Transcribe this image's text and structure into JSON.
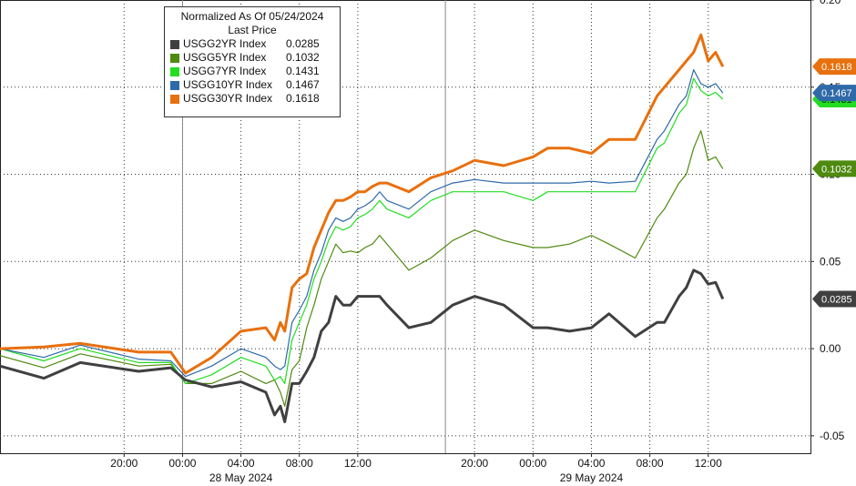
{
  "chart_data": {
    "type": "line",
    "title": "Normalized As Of 05/24/2024",
    "legend_header": "Last Price",
    "legend_position": "top-left",
    "grid": true,
    "ylim": [
      -0.06,
      0.2
    ],
    "y_ticks": [
      "0.20",
      "0.15",
      "0.10",
      "0.05",
      "0.00",
      "-0.05"
    ],
    "x_ticks": [
      "20:00",
      "00:00",
      "04:00",
      "08:00",
      "12:00",
      "20:00",
      "00:00",
      "04:00",
      "08:00",
      "12:00"
    ],
    "x_ticks_t": [
      20,
      24,
      28,
      32,
      36,
      44,
      48,
      52,
      56,
      60
    ],
    "date_labels": [
      {
        "label": "28 May 2024",
        "t": 28
      },
      {
        "label": "29 May 2024",
        "t": 52
      }
    ],
    "xlim": [
      11.5,
      67
    ],
    "x_unit": "hours since 00:00 27 May 2024",
    "series": [
      {
        "name": "USGG2YR Index",
        "last": "0.0285",
        "color": "#404040",
        "width": 3,
        "x": [
          11.5,
          14.5,
          17,
          21,
          23.2,
          24.2,
          26,
          28,
          29.7,
          30.3,
          30.7,
          31,
          31.5,
          32,
          32.5,
          33,
          33.5,
          34,
          34.5,
          35,
          35.5,
          36,
          36.5,
          37,
          37.5,
          38,
          39.5,
          41,
          42.5,
          44,
          46,
          48,
          49,
          50.5,
          52,
          53.2,
          55,
          56.5,
          57,
          58,
          58.5,
          59,
          59.5,
          60,
          60.5,
          61
        ],
        "y": [
          -0.01,
          -0.017,
          -0.008,
          -0.013,
          -0.011,
          -0.018,
          -0.022,
          -0.019,
          -0.025,
          -0.038,
          -0.033,
          -0.042,
          -0.02,
          -0.02,
          -0.013,
          -0.005,
          0.01,
          0.015,
          0.03,
          0.025,
          0.025,
          0.03,
          0.03,
          0.03,
          0.03,
          0.025,
          0.012,
          0.015,
          0.025,
          0.03,
          0.025,
          0.012,
          0.012,
          0.01,
          0.012,
          0.02,
          0.007,
          0.015,
          0.015,
          0.03,
          0.035,
          0.045,
          0.043,
          0.037,
          0.038,
          0.0285
        ]
      },
      {
        "name": "USGG5YR Index",
        "last": "0.1032",
        "color": "#4f8a10",
        "width": 1.2,
        "x": [
          11.5,
          14.5,
          17,
          21,
          23.2,
          24.2,
          26,
          28,
          29.7,
          30.3,
          30.7,
          31,
          31.5,
          32,
          32.5,
          33,
          33.5,
          34,
          34.5,
          35,
          35.5,
          36,
          36.5,
          37,
          37.5,
          38,
          39.5,
          41,
          42.5,
          44,
          46,
          48,
          49,
          50.5,
          52,
          53.2,
          55,
          56.5,
          57,
          58,
          58.5,
          59,
          59.5,
          60,
          60.5,
          61
        ],
        "y": [
          -0.004,
          -0.011,
          -0.003,
          -0.01,
          -0.009,
          -0.02,
          -0.02,
          -0.013,
          -0.02,
          -0.018,
          -0.025,
          -0.033,
          -0.012,
          -0.007,
          0.012,
          0.025,
          0.04,
          0.05,
          0.06,
          0.055,
          0.056,
          0.055,
          0.058,
          0.06,
          0.065,
          0.06,
          0.045,
          0.052,
          0.062,
          0.068,
          0.062,
          0.058,
          0.058,
          0.06,
          0.065,
          0.06,
          0.052,
          0.075,
          0.08,
          0.095,
          0.1,
          0.115,
          0.125,
          0.108,
          0.11,
          0.1032
        ]
      },
      {
        "name": "USGG7YR Index",
        "last": "0.1431",
        "color": "#22dd22",
        "width": 1.2,
        "x": [
          11.5,
          14.5,
          17,
          21,
          23.2,
          24.2,
          26,
          28,
          29.7,
          30.3,
          30.7,
          31,
          31.5,
          32,
          32.5,
          33,
          33.5,
          34,
          34.5,
          35,
          35.5,
          36,
          36.5,
          37,
          37.5,
          38,
          39.5,
          41,
          42.5,
          44,
          46,
          48,
          49,
          50.5,
          52,
          53.2,
          55,
          56.5,
          57,
          58,
          58.5,
          59,
          59.5,
          60,
          60.5,
          61
        ],
        "y": [
          0,
          -0.007,
          0,
          -0.008,
          -0.008,
          -0.02,
          -0.015,
          -0.005,
          -0.01,
          -0.018,
          -0.016,
          -0.02,
          0.005,
          0.015,
          0.025,
          0.04,
          0.05,
          0.062,
          0.07,
          0.068,
          0.07,
          0.075,
          0.077,
          0.08,
          0.085,
          0.08,
          0.075,
          0.085,
          0.09,
          0.09,
          0.09,
          0.085,
          0.09,
          0.09,
          0.09,
          0.09,
          0.09,
          0.115,
          0.118,
          0.135,
          0.14,
          0.155,
          0.148,
          0.145,
          0.147,
          0.1431
        ]
      },
      {
        "name": "USGG10YR Index",
        "last": "0.1467",
        "color": "#2f6aa8",
        "width": 1.2,
        "x": [
          11.5,
          14.5,
          17,
          21,
          23.2,
          24.2,
          26,
          28,
          29.7,
          30.3,
          30.7,
          31,
          31.5,
          32,
          32.5,
          33,
          33.5,
          34,
          34.5,
          35,
          35.5,
          36,
          36.5,
          37,
          37.5,
          38,
          39.5,
          41,
          42.5,
          44,
          46,
          48,
          49,
          50.5,
          52,
          53.2,
          55,
          56.5,
          57,
          58,
          58.5,
          59,
          59.5,
          60,
          60.5,
          61
        ],
        "y": [
          0,
          -0.005,
          0.002,
          -0.006,
          -0.007,
          -0.016,
          -0.01,
          0,
          -0.005,
          -0.01,
          -0.012,
          -0.01,
          0.015,
          0.022,
          0.03,
          0.045,
          0.055,
          0.068,
          0.075,
          0.073,
          0.075,
          0.08,
          0.082,
          0.085,
          0.09,
          0.085,
          0.08,
          0.09,
          0.095,
          0.097,
          0.095,
          0.095,
          0.095,
          0.095,
          0.096,
          0.095,
          0.096,
          0.12,
          0.125,
          0.14,
          0.145,
          0.16,
          0.152,
          0.15,
          0.152,
          0.1467
        ]
      },
      {
        "name": "USGG30YR Index",
        "last": "0.1618",
        "color": "#e8700e",
        "width": 3,
        "x": [
          11.5,
          14.5,
          17,
          21,
          23.2,
          24.2,
          26,
          28,
          29.7,
          30.3,
          30.7,
          31,
          31.5,
          32,
          32.5,
          33,
          33.5,
          34,
          34.5,
          35,
          35.5,
          36,
          36.5,
          37,
          37.5,
          38,
          39.5,
          41,
          42.5,
          44,
          46,
          48,
          49,
          50.5,
          52,
          53.2,
          55,
          56.5,
          57,
          58,
          58.5,
          59,
          59.5,
          60,
          60.5,
          61
        ],
        "y": [
          0,
          0.001,
          0.003,
          -0.002,
          -0.002,
          -0.014,
          -0.005,
          0.01,
          0.012,
          0.005,
          0.015,
          0.01,
          0.035,
          0.04,
          0.043,
          0.058,
          0.068,
          0.078,
          0.085,
          0.085,
          0.087,
          0.09,
          0.09,
          0.093,
          0.095,
          0.095,
          0.09,
          0.098,
          0.102,
          0.108,
          0.105,
          0.11,
          0.115,
          0.115,
          0.112,
          0.12,
          0.12,
          0.145,
          0.15,
          0.16,
          0.165,
          0.17,
          0.18,
          0.165,
          0.17,
          0.1618
        ]
      }
    ]
  }
}
